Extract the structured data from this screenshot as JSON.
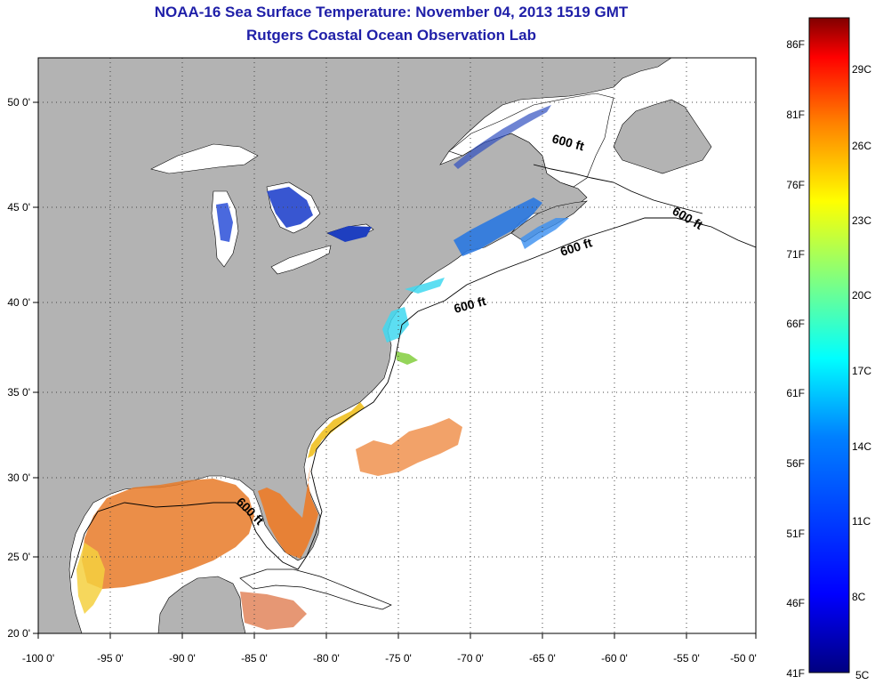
{
  "title": "NOAA-16 Sea Surface Temperature:  November 04, 2013 1519 GMT",
  "subtitle": "Rutgers Coastal Ocean Observation Lab",
  "map": {
    "lon_range": [
      -100,
      -50
    ],
    "lat_range": [
      20,
      52
    ],
    "lon_ticks": [
      "-100 0'",
      "-95 0'",
      "-90 0'",
      "-85 0'",
      "-80 0'",
      "-75 0'",
      "-70 0'",
      "-65 0'",
      "-60 0'",
      "-55 0'",
      "-50 0'"
    ],
    "lat_ticks": [
      "20 0'",
      "25 0'",
      "30 0'",
      "35 0'",
      "40 0'",
      "45 0'",
      "50 0'"
    ],
    "grid": "dotted",
    "land_color": "#b3b3b3",
    "ocean_color": "#ffffff",
    "contour_label": "600 ft"
  },
  "colorbar": {
    "fahrenheit_labels": [
      "86F",
      "81F",
      "76F",
      "71F",
      "66F",
      "61F",
      "56F",
      "51F",
      "46F",
      "41F"
    ],
    "celsius_labels": [
      "29C",
      "26C",
      "23C",
      "20C",
      "17C",
      "14C",
      "11C",
      "8C",
      "5C"
    ],
    "colors": [
      "#800000",
      "#ff0000",
      "#ff8000",
      "#ffff00",
      "#80ff80",
      "#00ffff",
      "#0080ff",
      "#0000ff",
      "#000080"
    ]
  }
}
